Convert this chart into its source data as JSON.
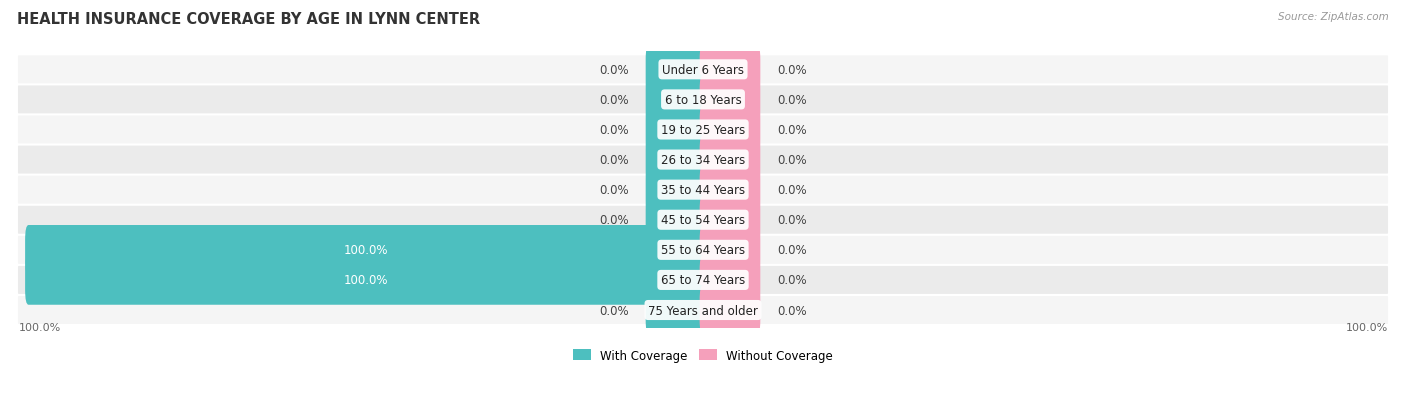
{
  "title": "HEALTH INSURANCE COVERAGE BY AGE IN LYNN CENTER",
  "source": "Source: ZipAtlas.com",
  "categories": [
    "Under 6 Years",
    "6 to 18 Years",
    "19 to 25 Years",
    "26 to 34 Years",
    "35 to 44 Years",
    "45 to 54 Years",
    "55 to 64 Years",
    "65 to 74 Years",
    "75 Years and older"
  ],
  "with_coverage": [
    0.0,
    0.0,
    0.0,
    0.0,
    0.0,
    0.0,
    100.0,
    100.0,
    0.0
  ],
  "without_coverage": [
    0.0,
    0.0,
    0.0,
    0.0,
    0.0,
    0.0,
    0.0,
    0.0,
    0.0
  ],
  "color_with": "#4DBFBF",
  "color_without": "#F5A0BB",
  "bg_row_odd": "#F5F5F5",
  "bg_row_even": "#EBEBEB",
  "bg_figure": "#FFFFFF",
  "title_fontsize": 10.5,
  "label_fontsize": 8.5,
  "cat_fontsize": 8.5,
  "tick_fontsize": 8,
  "source_fontsize": 7.5,
  "stub_size": 8.0,
  "max_val": 100.0
}
